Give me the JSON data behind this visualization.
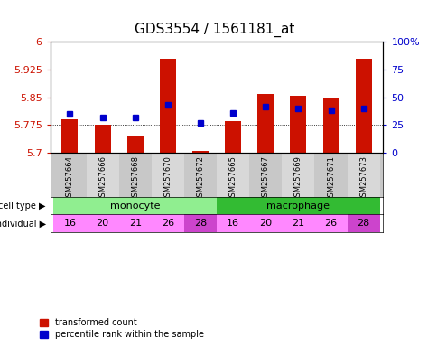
{
  "title": "GDS3554 / 1561181_at",
  "samples": [
    "GSM257664",
    "GSM257666",
    "GSM257668",
    "GSM257670",
    "GSM257672",
    "GSM257665",
    "GSM257667",
    "GSM257669",
    "GSM257671",
    "GSM257673"
  ],
  "red_values": [
    5.79,
    5.775,
    5.745,
    5.955,
    5.705,
    5.785,
    5.86,
    5.855,
    5.85,
    5.955
  ],
  "blue_pct": [
    35,
    32,
    32,
    43,
    27,
    36,
    42,
    40,
    38,
    40
  ],
  "ymin": 5.7,
  "ymax": 6.0,
  "yticks": [
    5.7,
    5.775,
    5.85,
    5.925,
    6.0
  ],
  "ytick_labels": [
    "5.7",
    "5.775",
    "5.85",
    "5.925",
    "6"
  ],
  "right_yticks": [
    0,
    25,
    50,
    75,
    100
  ],
  "right_ytick_labels": [
    "0",
    "25",
    "50",
    "75",
    "100%"
  ],
  "individuals": [
    "16",
    "20",
    "21",
    "26",
    "28",
    "16",
    "20",
    "21",
    "26",
    "28"
  ],
  "monocyte_color": "#90EE90",
  "macrophage_color": "#33BB33",
  "individual_colors": [
    "#FF88FF",
    "#FF88FF",
    "#FF88FF",
    "#FF88FF",
    "#CC44CC",
    "#FF88FF",
    "#FF88FF",
    "#FF88FF",
    "#FF88FF",
    "#CC44CC"
  ],
  "bar_color": "#CC1100",
  "dot_color": "#0000CC",
  "panel_bg_even": "#C8C8C8",
  "panel_bg_odd": "#D8D8D8",
  "title_fontsize": 11,
  "tick_fontsize": 8,
  "label_fontsize": 8
}
